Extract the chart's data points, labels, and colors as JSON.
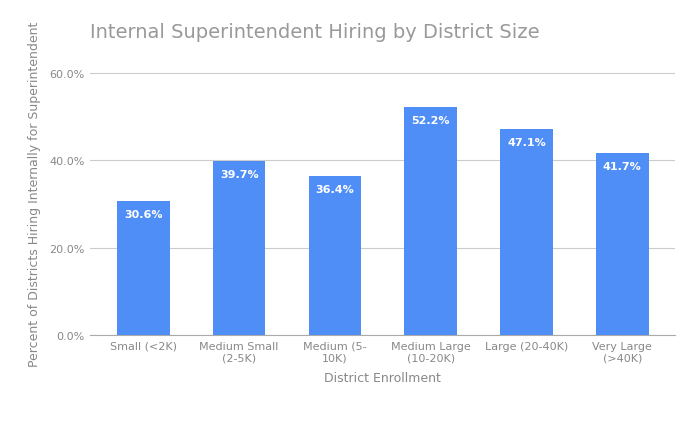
{
  "title": "Internal Superintendent Hiring by District Size",
  "xlabel": "District Enrollment",
  "ylabel": "Percent of Districts Hiring Internally for Superintendent",
  "categories": [
    "Small (<2K)",
    "Medium Small\n(2-5K)",
    "Medium (5-\n10K)",
    "Medium Large\n(10-20K)",
    "Large (20-40K)",
    "Very Large\n(>40K)"
  ],
  "values": [
    30.6,
    39.7,
    36.4,
    52.2,
    47.1,
    41.7
  ],
  "bar_color": "#4F8EF7",
  "label_color": "#FFFFFF",
  "title_color": "#999999",
  "axis_label_color": "#888888",
  "tick_color": "#888888",
  "grid_color": "#CCCCCC",
  "background_color": "#FFFFFF",
  "ylim": [
    0,
    65
  ],
  "yticks": [
    0,
    20,
    40,
    60
  ],
  "ytick_labels": [
    "0.0%",
    "20.0%",
    "40.0%",
    "60.0%"
  ],
  "title_fontsize": 14,
  "axis_label_fontsize": 9,
  "tick_fontsize": 8,
  "bar_label_fontsize": 8,
  "bar_width": 0.55
}
